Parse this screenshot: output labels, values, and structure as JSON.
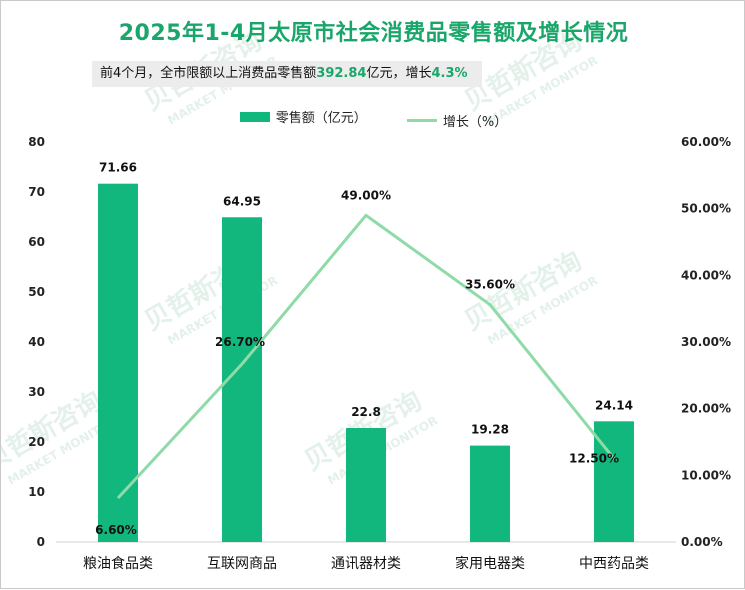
{
  "title": "2025年1-4月太原市社会消费品零售额及增长情况",
  "subtitle": {
    "prefix": "前4个月，全市限额以上消费品零售额",
    "value": "392.84",
    "unit": "亿元，增长",
    "growth": "4.3%"
  },
  "watermark": [
    "贝哲斯咨询",
    "MARKET MONITOR"
  ],
  "colors": {
    "bar": "#12b77d",
    "line": "#8fdba8",
    "title": "#1aa66a"
  },
  "chart_data": {
    "type": "bar",
    "categories": [
      "粮油食品类",
      "互联网商品",
      "通讯器材类",
      "家用电器类",
      "中西药品类"
    ],
    "series": [
      {
        "name": "零售额（亿元）",
        "axis": "left",
        "values": [
          71.66,
          64.95,
          22.8,
          19.28,
          24.14
        ],
        "labels": [
          "71.66",
          "64.95",
          "22.8",
          "19.28",
          "24.14"
        ]
      },
      {
        "name": "增长（%）",
        "axis": "right",
        "type": "line",
        "values": [
          6.6,
          26.7,
          49.0,
          35.6,
          12.5
        ],
        "labels": [
          "6.60%",
          "26.70%",
          "49.00%",
          "35.60%",
          "12.50%"
        ]
      }
    ],
    "y_left": {
      "min": 0,
      "max": 80,
      "step": 10,
      "ticks": [
        "0",
        "10",
        "20",
        "30",
        "40",
        "50",
        "60",
        "70",
        "80"
      ]
    },
    "y_right": {
      "min": 0,
      "max": 60,
      "step": 10,
      "ticks": [
        "0.00%",
        "10.00%",
        "20.00%",
        "30.00%",
        "40.00%",
        "50.00%",
        "60.00%"
      ]
    },
    "grid": false,
    "legend": "top-center"
  }
}
